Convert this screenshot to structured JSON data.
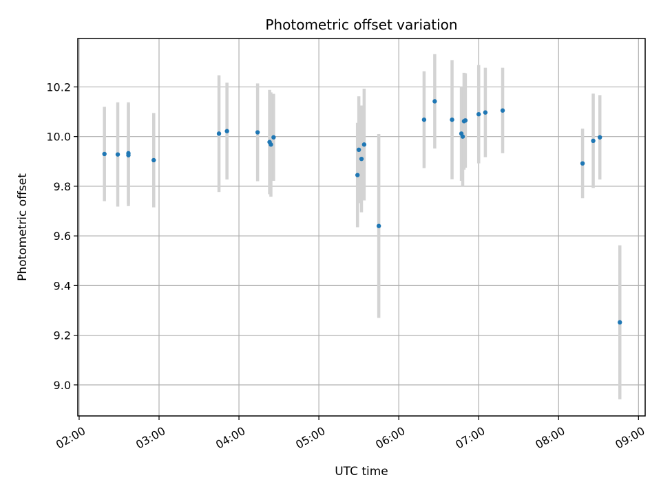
{
  "chart_data": {
    "type": "scatter",
    "title": "Photometric offset variation",
    "xlabel": "UTC time",
    "ylabel": "Photometric offset",
    "x_unit": "UTC time (HH:MM)",
    "xlim": [
      "01:59",
      "09:05"
    ],
    "ylim": [
      8.875,
      10.395
    ],
    "x_ticks": [
      "02:00",
      "03:00",
      "04:00",
      "05:00",
      "06:00",
      "07:00",
      "08:00",
      "09:00"
    ],
    "y_ticks": [
      "9.0",
      "9.2",
      "9.4",
      "9.6",
      "9.8",
      "10.0",
      "10.2"
    ],
    "grid": true,
    "legend": false,
    "colors": {
      "marker": "#1f77b4",
      "errorbar": "#d3d3d3",
      "grid": "#b0b0b0",
      "axes": "#000000"
    },
    "points": [
      {
        "x": "02:19",
        "y": 9.93,
        "err": 0.19
      },
      {
        "x": "02:29",
        "y": 9.928,
        "err": 0.21
      },
      {
        "x": "02:37",
        "y": 9.933,
        "err": 0.205
      },
      {
        "x": "02:37",
        "y": 9.925,
        "err": 0.205
      },
      {
        "x": "02:56",
        "y": 9.905,
        "err": 0.19
      },
      {
        "x": "03:45",
        "y": 10.012,
        "err": 0.235
      },
      {
        "x": "03:51",
        "y": 10.022,
        "err": 0.195
      },
      {
        "x": "04:14",
        "y": 10.017,
        "err": 0.197
      },
      {
        "x": "04:23",
        "y": 9.978,
        "err": 0.21
      },
      {
        "x": "04:24",
        "y": 9.968,
        "err": 0.21
      },
      {
        "x": "04:26",
        "y": 9.997,
        "err": 0.175
      },
      {
        "x": "05:29",
        "y": 9.845,
        "err": 0.21
      },
      {
        "x": "05:30",
        "y": 9.947,
        "err": 0.215
      },
      {
        "x": "05:32",
        "y": 9.91,
        "err": 0.215
      },
      {
        "x": "05:34",
        "y": 9.968,
        "err": 0.225
      },
      {
        "x": "05:45",
        "y": 9.64,
        "err": 0.37
      },
      {
        "x": "06:19",
        "y": 10.068,
        "err": 0.195
      },
      {
        "x": "06:27",
        "y": 10.142,
        "err": 0.19
      },
      {
        "x": "06:40",
        "y": 10.068,
        "err": 0.24
      },
      {
        "x": "06:47",
        "y": 10.012,
        "err": 0.19
      },
      {
        "x": "06:48",
        "y": 10.0,
        "err": 0.2
      },
      {
        "x": "06:49",
        "y": 10.062,
        "err": 0.195
      },
      {
        "x": "06:50",
        "y": 10.065,
        "err": 0.19
      },
      {
        "x": "07:00",
        "y": 10.09,
        "err": 0.198
      },
      {
        "x": "07:05",
        "y": 10.097,
        "err": 0.18
      },
      {
        "x": "07:18",
        "y": 10.105,
        "err": 0.172
      },
      {
        "x": "08:18",
        "y": 9.892,
        "err": 0.14
      },
      {
        "x": "08:26",
        "y": 9.983,
        "err": 0.19
      },
      {
        "x": "08:31",
        "y": 9.997,
        "err": 0.17
      },
      {
        "x": "08:46",
        "y": 9.252,
        "err": 0.31
      }
    ]
  }
}
